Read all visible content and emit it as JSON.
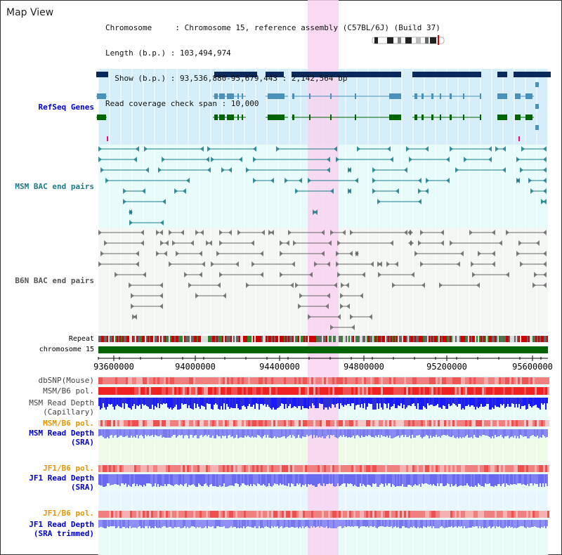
{
  "header": {
    "title": "Map View",
    "info_lines": [
      "Chromosome     : Chromosome 15, reference assembly (C57BL/6J) (Build 37)",
      "Length (b.p.) : 103,494,974",
      "  Show (b.p.) : 93,536,880-95,679,443 : 2,142,564 bp",
      "Read coverage check span : 10,000"
    ]
  },
  "tracks": {
    "refseq": {
      "label": "RefSeq Genes",
      "color": "#0000cc"
    },
    "msm_bac": {
      "label": "MSM BAC end pairs",
      "color": "#1a7a8a"
    },
    "b6n_bac": {
      "label": "B6N BAC end pairs",
      "color": "#555555"
    },
    "repeat": {
      "label": "Repeat"
    },
    "chromosome": {
      "label": "chromosome 15"
    },
    "dbsnp": {
      "label": "dbSNP(Mouse)"
    },
    "msm_b6_pol": {
      "label": "MSM/B6 pol."
    },
    "msm_depth_cap": {
      "label": "MSM Read Depth\n(Capillary)"
    },
    "msm_b6_pol_sra": {
      "label": "MSM/B6 pol.",
      "color": "#e69500"
    },
    "msm_depth_sra": {
      "label": "MSM Read Depth\n(SRA)",
      "color": "#0000cc"
    },
    "jf1_b6_pol": {
      "label": "JF1/B6 pol.",
      "color": "#e69500"
    },
    "jf1_depth_sra": {
      "label": "JF1 Read Depth\n(SRA)",
      "color": "#0000cc"
    },
    "jf1_b6_pol2": {
      "label": "JF1/B6 pol.",
      "color": "#e69500"
    },
    "jf1_depth_trim": {
      "label": "JF1 Read Depth\n(SRA trimmed)",
      "color": "#0000cc"
    }
  },
  "axis": {
    "ticks": [
      "93600000",
      "94000000",
      "94400000",
      "94800000",
      "95200000",
      "95600000"
    ]
  },
  "colors": {
    "highlight": "#f8d4f0",
    "refseq_band": "#d6eefa",
    "gene_dark": "#0a2a5e",
    "gene_mid": "#4a90b8",
    "gene_green": "#006400",
    "chrom_green": "#006400"
  }
}
